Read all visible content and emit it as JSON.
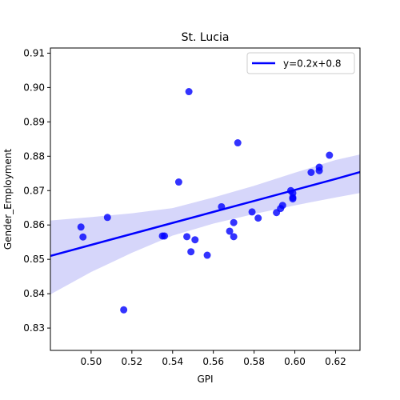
{
  "chart_data": {
    "type": "scatter",
    "title": "St. Lucia",
    "xlabel": "GPI",
    "ylabel": "Gender_Employment",
    "xlim": [
      0.48,
      0.632
    ],
    "ylim": [
      0.8235,
      0.9115
    ],
    "xticks": [
      0.5,
      0.52,
      0.54,
      0.56,
      0.58,
      0.6,
      0.62
    ],
    "yticks": [
      0.83,
      0.84,
      0.85,
      0.86,
      0.87,
      0.88,
      0.89,
      0.9,
      0.91
    ],
    "legend": {
      "position": "top-right",
      "label": "y=0.2x+0.8"
    },
    "colors": {
      "points": "#0000ff",
      "line": "#0000ff",
      "band": "#c8c8f8"
    },
    "points": [
      {
        "x": 0.495,
        "y": 0.8594
      },
      {
        "x": 0.496,
        "y": 0.8565
      },
      {
        "x": 0.508,
        "y": 0.8622
      },
      {
        "x": 0.516,
        "y": 0.8353
      },
      {
        "x": 0.535,
        "y": 0.8568
      },
      {
        "x": 0.536,
        "y": 0.8568
      },
      {
        "x": 0.543,
        "y": 0.8725
      },
      {
        "x": 0.547,
        "y": 0.8566
      },
      {
        "x": 0.548,
        "y": 0.8988
      },
      {
        "x": 0.549,
        "y": 0.8522
      },
      {
        "x": 0.551,
        "y": 0.8557
      },
      {
        "x": 0.557,
        "y": 0.8512
      },
      {
        "x": 0.564,
        "y": 0.8653
      },
      {
        "x": 0.568,
        "y": 0.8582
      },
      {
        "x": 0.57,
        "y": 0.8607
      },
      {
        "x": 0.57,
        "y": 0.8566
      },
      {
        "x": 0.572,
        "y": 0.8839
      },
      {
        "x": 0.579,
        "y": 0.8638
      },
      {
        "x": 0.582,
        "y": 0.862
      },
      {
        "x": 0.591,
        "y": 0.8636
      },
      {
        "x": 0.593,
        "y": 0.8648
      },
      {
        "x": 0.594,
        "y": 0.8657
      },
      {
        "x": 0.598,
        "y": 0.87
      },
      {
        "x": 0.599,
        "y": 0.8693
      },
      {
        "x": 0.599,
        "y": 0.868
      },
      {
        "x": 0.599,
        "y": 0.8676
      },
      {
        "x": 0.608,
        "y": 0.8753
      },
      {
        "x": 0.612,
        "y": 0.8768
      },
      {
        "x": 0.612,
        "y": 0.8758
      },
      {
        "x": 0.617,
        "y": 0.8803
      }
    ],
    "regression": {
      "x": [
        0.48,
        0.5,
        0.52,
        0.54,
        0.56,
        0.58,
        0.6,
        0.62,
        0.632
      ],
      "y": [
        0.851,
        0.8542,
        0.8574,
        0.8606,
        0.8638,
        0.867,
        0.8702,
        0.8734,
        0.8754
      ],
      "ci_lower": [
        0.8398,
        0.8463,
        0.8519,
        0.8569,
        0.8604,
        0.8632,
        0.8657,
        0.868,
        0.8693
      ],
      "ci_upper": [
        0.8613,
        0.8623,
        0.8634,
        0.8649,
        0.868,
        0.8714,
        0.8752,
        0.8789,
        0.8805
      ]
    }
  }
}
